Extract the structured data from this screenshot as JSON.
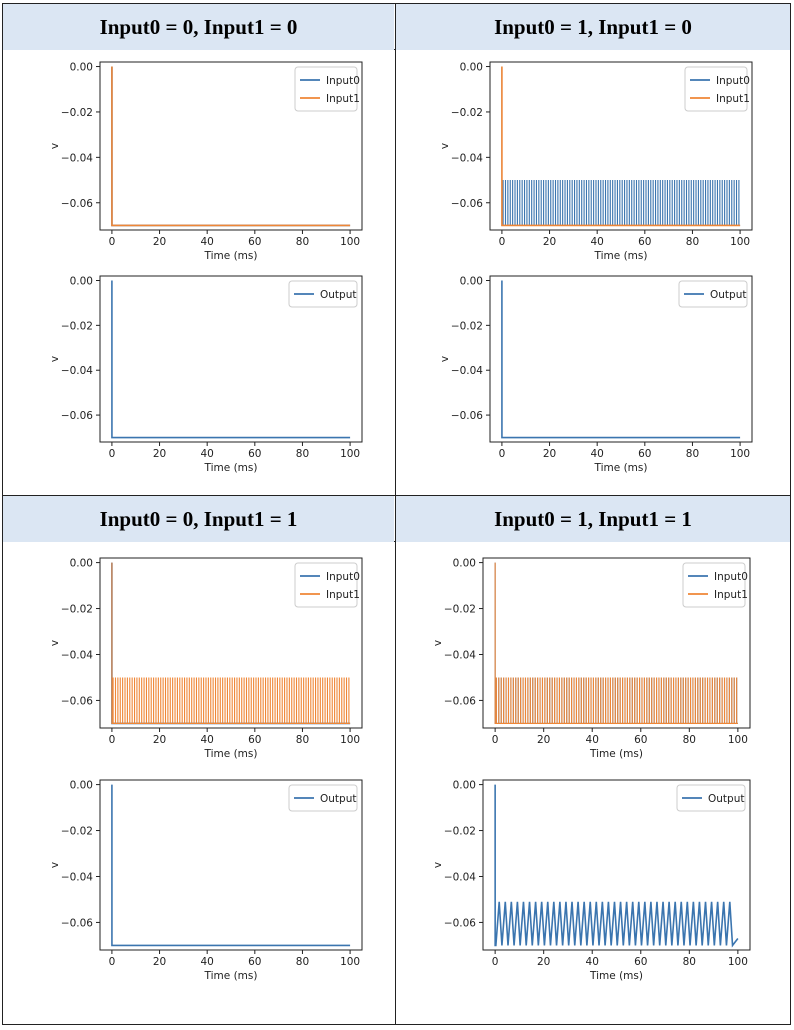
{
  "headers": [
    "Input0 = 0, Input1 = 0",
    "Input0 = 1, Input1 = 0",
    "Input0 = 0, Input1 = 1",
    "Input0 = 1, Input1 = 1"
  ],
  "colors": {
    "input0": "#3b75af",
    "input1": "#ef8636",
    "output": "#3b75af",
    "header_bg": "#dbe6f3"
  },
  "chart_data": [
    {
      "id": "p00-in",
      "type": "line",
      "xlabel": "Time (ms)",
      "ylabel": "v",
      "xlim": [
        -5,
        105
      ],
      "ylim": [
        -0.072,
        0.002
      ],
      "xticks": [
        "0",
        "20",
        "40",
        "60",
        "80",
        "100"
      ],
      "yticks": [
        "0.00",
        "−0.02",
        "−0.04",
        "−0.06"
      ],
      "legend": "top-right",
      "series": [
        {
          "name": "Input0",
          "pattern": "rest"
        },
        {
          "name": "Input1",
          "pattern": "rest"
        }
      ]
    },
    {
      "id": "p00-out",
      "type": "line",
      "xlabel": "Time (ms)",
      "ylabel": "v",
      "xlim": [
        -5,
        105
      ],
      "ylim": [
        -0.072,
        0.002
      ],
      "xticks": [
        "0",
        "20",
        "40",
        "60",
        "80",
        "100"
      ],
      "yticks": [
        "0.00",
        "−0.02",
        "−0.04",
        "−0.06"
      ],
      "legend": "top-right",
      "series": [
        {
          "name": "Output",
          "pattern": "rest"
        }
      ]
    },
    {
      "id": "p10-in",
      "type": "line",
      "xlabel": "Time (ms)",
      "ylabel": "v",
      "xlim": [
        -5,
        105
      ],
      "ylim": [
        -0.072,
        0.002
      ],
      "xticks": [
        "0",
        "20",
        "40",
        "60",
        "80",
        "100"
      ],
      "yticks": [
        "0.00",
        "−0.02",
        "−0.04",
        "−0.06"
      ],
      "legend": "top-right",
      "series": [
        {
          "name": "Input0",
          "pattern": "spiking",
          "period_ms": 1.0,
          "v_peak": -0.05,
          "v_reset": -0.07,
          "drawn_last": false
        },
        {
          "name": "Input1",
          "pattern": "rest",
          "drawn_last": true
        }
      ]
    },
    {
      "id": "p10-out",
      "type": "line",
      "xlabel": "Time (ms)",
      "ylabel": "v",
      "xlim": [
        -5,
        105
      ],
      "ylim": [
        -0.072,
        0.002
      ],
      "xticks": [
        "0",
        "20",
        "40",
        "60",
        "80",
        "100"
      ],
      "yticks": [
        "0.00",
        "−0.02",
        "−0.04",
        "−0.06"
      ],
      "legend": "top-right",
      "series": [
        {
          "name": "Output",
          "pattern": "rest"
        }
      ]
    },
    {
      "id": "p01-in",
      "type": "line",
      "xlabel": "Time (ms)",
      "ylabel": "v",
      "xlim": [
        -5,
        105
      ],
      "ylim": [
        -0.072,
        0.002
      ],
      "xticks": [
        "0",
        "20",
        "40",
        "60",
        "80",
        "100"
      ],
      "yticks": [
        "0.00",
        "−0.02",
        "−0.04",
        "−0.06"
      ],
      "legend": "top-right",
      "series": [
        {
          "name": "Input0",
          "pattern": "rest"
        },
        {
          "name": "Input1",
          "pattern": "spiking",
          "period_ms": 1.0,
          "v_peak": -0.05,
          "v_reset": -0.07
        }
      ]
    },
    {
      "id": "p01-out",
      "type": "line",
      "xlabel": "Time (ms)",
      "ylabel": "v",
      "xlim": [
        -5,
        105
      ],
      "ylim": [
        -0.072,
        0.002
      ],
      "xticks": [
        "0",
        "20",
        "40",
        "60",
        "80",
        "100"
      ],
      "yticks": [
        "0.00",
        "−0.02",
        "−0.04",
        "−0.06"
      ],
      "legend": "top-right",
      "series": [
        {
          "name": "Output",
          "pattern": "rest"
        }
      ]
    },
    {
      "id": "p11-in",
      "type": "line",
      "xlabel": "Time (ms)",
      "ylabel": "v",
      "xlim": [
        -5,
        105
      ],
      "ylim": [
        -0.072,
        0.002
      ],
      "xticks": [
        "0",
        "20",
        "40",
        "60",
        "80",
        "100"
      ],
      "yticks": [
        "0.00",
        "−0.02",
        "−0.04",
        "−0.06"
      ],
      "legend": "top-right",
      "series": [
        {
          "name": "Input0",
          "pattern": "spiking",
          "period_ms": 1.0,
          "v_peak": -0.05,
          "v_reset": -0.07
        },
        {
          "name": "Input1",
          "pattern": "spiking",
          "period_ms": 1.0,
          "v_peak": -0.05,
          "v_reset": -0.07
        }
      ]
    },
    {
      "id": "p11-out",
      "type": "line",
      "xlabel": "Time (ms)",
      "ylabel": "v",
      "xlim": [
        -5,
        105
      ],
      "ylim": [
        -0.072,
        0.002
      ],
      "xticks": [
        "0",
        "20",
        "40",
        "60",
        "80",
        "100"
      ],
      "yticks": [
        "0.00",
        "−0.02",
        "−0.04",
        "−0.06"
      ],
      "legend": "top-right",
      "series": [
        {
          "name": "Output",
          "pattern": "sawtooth",
          "period_ms": 2.5,
          "v_peak": -0.051,
          "v_reset": -0.07
        }
      ]
    }
  ]
}
